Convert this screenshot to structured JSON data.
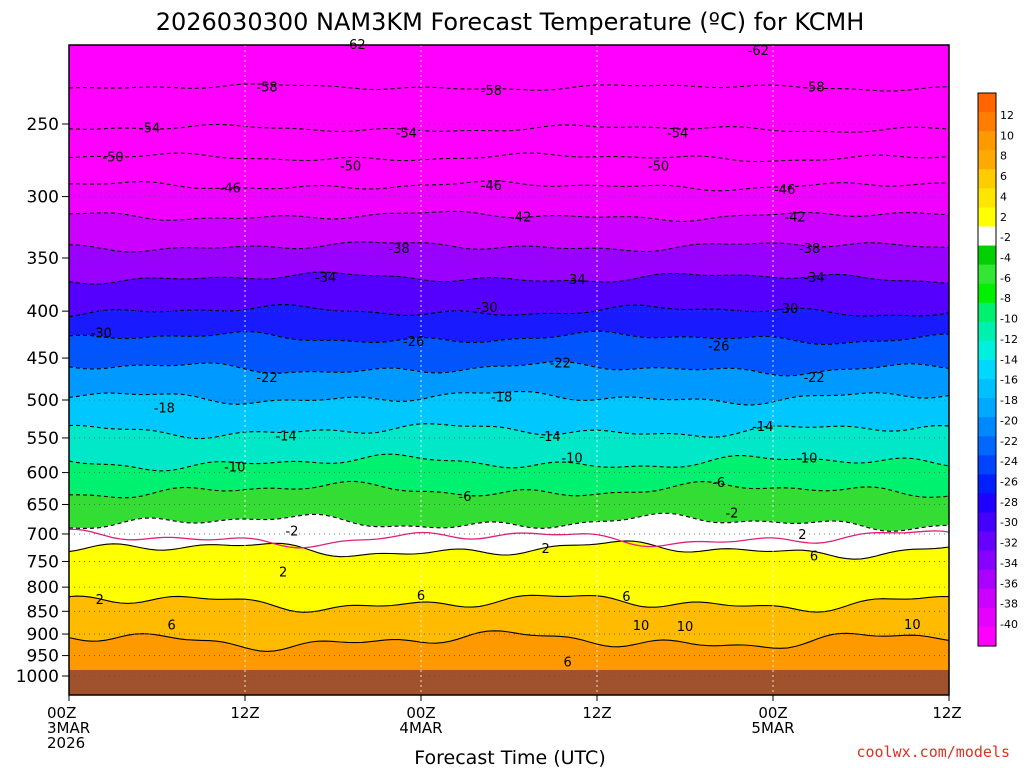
{
  "chart_data": {
    "type": "heatmap",
    "title": "2026030300 NAM3KM Forecast Temperature (ºC) for KCMH",
    "xlabel": "Forecast Time (UTC)",
    "ylabel": "",
    "credit": "coolwx.com/models",
    "credit_color": "#e0301e",
    "y_axis": {
      "label_ticks": [
        250,
        300,
        350,
        400,
        450,
        500,
        550,
        600,
        650,
        700,
        750,
        800,
        850,
        900,
        950,
        1000
      ],
      "label_texts": [
        "250",
        "300",
        "350",
        "400",
        "450",
        "500",
        "550",
        "600",
        "650",
        "700",
        "750",
        "800",
        "850",
        "900",
        "950",
        "1000"
      ],
      "range": [
        200,
        1025
      ],
      "scale": "log-pressure"
    },
    "x_axis": {
      "range_hours": [
        0,
        60
      ],
      "ticks": [
        {
          "hour": 0,
          "lines": [
            "00Z",
            "3MAR",
            "2026"
          ]
        },
        {
          "hour": 12,
          "lines": [
            "12Z"
          ]
        },
        {
          "hour": 24,
          "lines": [
            "00Z",
            "4MAR"
          ]
        },
        {
          "hour": 36,
          "lines": [
            "12Z"
          ]
        },
        {
          "hour": 48,
          "lines": [
            "00Z",
            "5MAR"
          ]
        },
        {
          "hour": 60,
          "lines": [
            "12Z"
          ]
        }
      ]
    },
    "ground_color": "#a0522d",
    "ground_top_pressure": 985,
    "temperature_bands": [
      {
        "temp": -62,
        "pressure": 200
      },
      {
        "temp": -58,
        "pressure": 228
      },
      {
        "temp": -54,
        "pressure": 253
      },
      {
        "temp": -50,
        "pressure": 272
      },
      {
        "temp": -46,
        "pressure": 292
      },
      {
        "temp": -42,
        "pressure": 315
      },
      {
        "temp": -38,
        "pressure": 340
      },
      {
        "temp": -34,
        "pressure": 368
      },
      {
        "temp": -30,
        "pressure": 400
      },
      {
        "temp": -26,
        "pressure": 428
      },
      {
        "temp": -22,
        "pressure": 462
      },
      {
        "temp": -18,
        "pressure": 497
      },
      {
        "temp": -14,
        "pressure": 540
      },
      {
        "temp": -10,
        "pressure": 585
      },
      {
        "temp": -6,
        "pressure": 627
      },
      {
        "temp": -2,
        "pressure": 680
      },
      {
        "temp": 2,
        "pressure": 728
      },
      {
        "temp": 6,
        "pressure": 832
      },
      {
        "temp": 10,
        "pressure": 915
      }
    ],
    "contour_labels": [
      {
        "text": "-62",
        "hour": 19.5,
        "pressure": 205
      },
      {
        "text": "-62",
        "hour": 47.0,
        "pressure": 208
      },
      {
        "text": "-58",
        "hour": 13.5,
        "pressure": 228
      },
      {
        "text": "-58",
        "hour": 28.8,
        "pressure": 230
      },
      {
        "text": "-58",
        "hour": 50.8,
        "pressure": 228
      },
      {
        "text": "-54",
        "hour": 5.5,
        "pressure": 253
      },
      {
        "text": "-54",
        "hour": 23.0,
        "pressure": 256
      },
      {
        "text": "-54",
        "hour": 41.5,
        "pressure": 256
      },
      {
        "text": "-50",
        "hour": 3.0,
        "pressure": 272
      },
      {
        "text": "-50",
        "hour": 19.2,
        "pressure": 278
      },
      {
        "text": "-50",
        "hour": 40.2,
        "pressure": 278
      },
      {
        "text": "-46",
        "hour": 11.0,
        "pressure": 294
      },
      {
        "text": "-46",
        "hour": 28.8,
        "pressure": 292
      },
      {
        "text": "-46",
        "hour": 48.8,
        "pressure": 295
      },
      {
        "text": "-42",
        "hour": 30.8,
        "pressure": 316
      },
      {
        "text": "-42",
        "hour": 49.5,
        "pressure": 316
      },
      {
        "text": "-38",
        "hour": 22.5,
        "pressure": 342
      },
      {
        "text": "-38",
        "hour": 50.5,
        "pressure": 342
      },
      {
        "text": "-34",
        "hour": 17.5,
        "pressure": 368
      },
      {
        "text": "-34",
        "hour": 34.5,
        "pressure": 370
      },
      {
        "text": "-34",
        "hour": 50.8,
        "pressure": 368
      },
      {
        "text": "-30",
        "hour": 2.2,
        "pressure": 423
      },
      {
        "text": "-30",
        "hour": 28.5,
        "pressure": 397
      },
      {
        "text": "-30",
        "hour": 49.0,
        "pressure": 398
      },
      {
        "text": "-26",
        "hour": 23.5,
        "pressure": 432
      },
      {
        "text": "-26",
        "hour": 44.3,
        "pressure": 437
      },
      {
        "text": "-22",
        "hour": 13.5,
        "pressure": 473
      },
      {
        "text": "-22",
        "hour": 33.5,
        "pressure": 456
      },
      {
        "text": "-22",
        "hour": 50.8,
        "pressure": 473
      },
      {
        "text": "-18",
        "hour": 6.5,
        "pressure": 511
      },
      {
        "text": "-18",
        "hour": 29.5,
        "pressure": 497
      },
      {
        "text": "-14",
        "hour": 14.8,
        "pressure": 548
      },
      {
        "text": "-14",
        "hour": 32.8,
        "pressure": 549
      },
      {
        "text": "-14",
        "hour": 47.3,
        "pressure": 535
      },
      {
        "text": "-10",
        "hour": 11.3,
        "pressure": 592
      },
      {
        "text": "-10",
        "hour": 34.3,
        "pressure": 579
      },
      {
        "text": "-10",
        "hour": 50.3,
        "pressure": 579
      },
      {
        "text": "-6",
        "hour": 27.0,
        "pressure": 638
      },
      {
        "text": "-6",
        "hour": 44.3,
        "pressure": 616
      },
      {
        "text": "-2",
        "hour": 15.2,
        "pressure": 696
      },
      {
        "text": "-2",
        "hour": 45.2,
        "pressure": 665
      },
      {
        "text": "2",
        "hour": 32.5,
        "pressure": 727
      },
      {
        "text": "2",
        "hour": 50.0,
        "pressure": 702
      },
      {
        "text": "2",
        "hour": 14.6,
        "pressure": 771
      },
      {
        "text": "2",
        "hour": 2.1,
        "pressure": 826
      },
      {
        "text": "6",
        "hour": 50.8,
        "pressure": 741
      },
      {
        "text": "6",
        "hour": 24.0,
        "pressure": 818
      },
      {
        "text": "6",
        "hour": 38.0,
        "pressure": 820
      },
      {
        "text": "6",
        "hour": 7.0,
        "pressure": 881
      },
      {
        "text": "6",
        "hour": 34.0,
        "pressure": 967
      },
      {
        "text": "10",
        "hour": 39.0,
        "pressure": 882
      },
      {
        "text": "10",
        "hour": 42.0,
        "pressure": 884
      },
      {
        "text": "10",
        "hour": 57.5,
        "pressure": 880
      }
    ],
    "colorbar": {
      "labels_top_to_bottom": [
        "12",
        "10",
        "8",
        "6",
        "4",
        "2",
        "-2",
        "-4",
        "-6",
        "-8",
        "-10",
        "-12",
        "-14",
        "-16",
        "-18",
        "-20",
        "-22",
        "-24",
        "-26",
        "-28",
        "-30",
        "-32",
        "-34",
        "-36",
        "-38",
        "-40"
      ],
      "colors_top_to_bottom": [
        "#ff6600",
        "#ff7d00",
        "#ff9900",
        "#ffaa00",
        "#ffcc00",
        "#ffe600",
        "#ffff00",
        "#ffffff",
        "#00d000",
        "#33e633",
        "#00f000",
        "#00f070",
        "#00f0b0",
        "#00f0e0",
        "#00d8ff",
        "#00c0ff",
        "#00a8ff",
        "#0088ff",
        "#0068ff",
        "#0044ff",
        "#0020ff",
        "#2000ff",
        "#4400ff",
        "#6600ff",
        "#8800ff",
        "#aa00ff",
        "#cc00ff",
        "#e600ff",
        "#ff00ff"
      ]
    },
    "band_colors": {
      "-62": "#ff00ff",
      "-58": "#ff00ff",
      "-54": "#ff00ff",
      "-50": "#ff00ff",
      "-46": "#ff00ff",
      "-42": "#f200ff",
      "-38": "#cc00ff",
      "-34": "#9900ff",
      "-30": "#5500ff",
      "-26": "#1a1aff",
      "-22": "#0055ff",
      "-18": "#0099ff",
      "-14": "#00c8ff",
      "-10": "#00e8c8",
      "-6": "#00f070",
      "-2": "#33dd33",
      "2": "#ffffff",
      "6": "#ffff00",
      "10": "#ffbb00",
      "14": "#ff9900"
    }
  }
}
